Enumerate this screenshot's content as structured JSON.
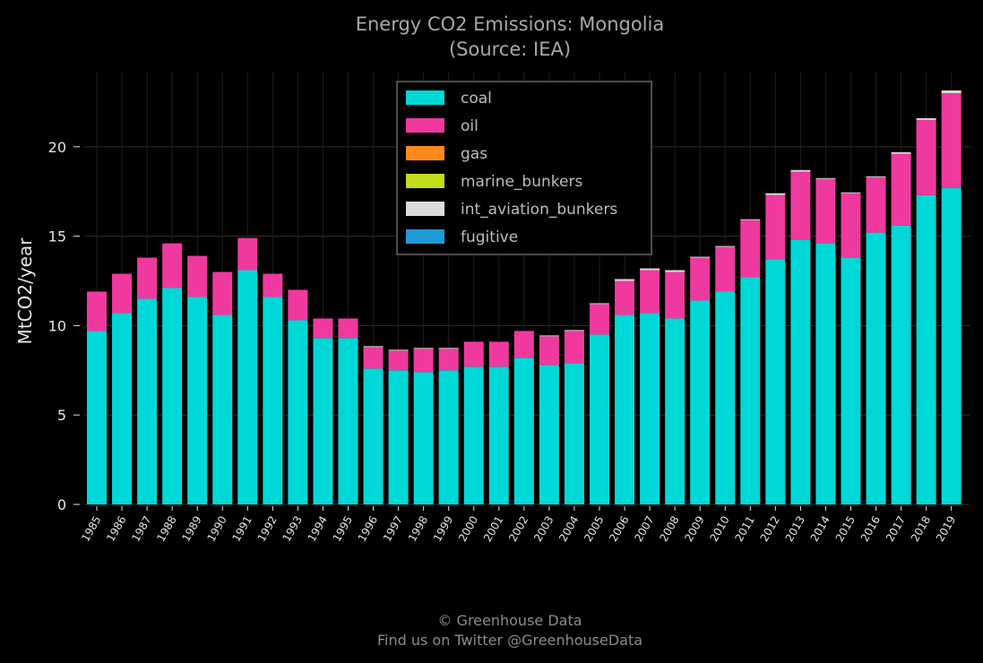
{
  "chart_data": {
    "type": "bar",
    "stacked": true,
    "title": "Energy CO2 Emissions: Mongolia",
    "subtitle": "(Source: IEA)",
    "xlabel": "",
    "ylabel": "MtCO2/year",
    "ylim": [
      0,
      24.2
    ],
    "yticks": [
      "0",
      "5",
      "10",
      "15",
      "20"
    ],
    "grid": true,
    "legend_position": "top-center",
    "categories": [
      "1985",
      "1986",
      "1987",
      "1988",
      "1989",
      "1990",
      "1991",
      "1992",
      "1993",
      "1994",
      "1995",
      "1996",
      "1997",
      "1998",
      "1999",
      "2000",
      "2001",
      "2002",
      "2003",
      "2004",
      "2005",
      "2006",
      "2007",
      "2008",
      "2009",
      "2010",
      "2011",
      "2012",
      "2013",
      "2014",
      "2015",
      "2016",
      "2017",
      "2018",
      "2019"
    ],
    "series": [
      {
        "name": "coal",
        "color": "#00d8d8",
        "values": [
          9.7,
          10.7,
          11.5,
          12.1,
          11.6,
          10.6,
          13.1,
          11.6,
          10.3,
          9.3,
          9.3,
          7.6,
          7.5,
          7.4,
          7.5,
          7.7,
          7.7,
          8.2,
          7.8,
          7.9,
          9.5,
          10.6,
          10.7,
          10.4,
          11.4,
          11.9,
          12.7,
          13.7,
          14.8,
          14.6,
          13.8,
          15.2,
          15.6,
          17.3,
          17.7
        ]
      },
      {
        "name": "oil",
        "color": "#f0399f",
        "values": [
          2.2,
          2.2,
          2.3,
          2.5,
          2.3,
          2.4,
          1.8,
          1.3,
          1.7,
          1.1,
          1.1,
          1.2,
          1.1,
          1.3,
          1.2,
          1.4,
          1.4,
          1.5,
          1.6,
          1.8,
          1.7,
          1.9,
          2.4,
          2.6,
          2.4,
          2.5,
          3.2,
          3.6,
          3.8,
          3.6,
          3.6,
          3.1,
          4.0,
          4.2,
          5.3
        ]
      },
      {
        "name": "gas",
        "color": "#ff8a1a",
        "values": [
          0,
          0,
          0,
          0,
          0,
          0,
          0,
          0,
          0,
          0,
          0,
          0,
          0,
          0,
          0,
          0,
          0,
          0,
          0,
          0,
          0,
          0,
          0,
          0,
          0,
          0,
          0,
          0,
          0,
          0,
          0,
          0,
          0,
          0,
          0
        ]
      },
      {
        "name": "marine_bunkers",
        "color": "#c3dc1c",
        "values": [
          0,
          0,
          0,
          0,
          0,
          0,
          0,
          0,
          0,
          0,
          0,
          0,
          0,
          0,
          0,
          0,
          0,
          0,
          0,
          0,
          0,
          0,
          0,
          0,
          0,
          0,
          0,
          0,
          0,
          0,
          0,
          0,
          0,
          0,
          0
        ]
      },
      {
        "name": "int_aviation_bunkers",
        "color": "#dcdcdc",
        "values": [
          0,
          0,
          0,
          0,
          0,
          0,
          0,
          0,
          0,
          0,
          0,
          0.05,
          0.05,
          0.05,
          0.05,
          0,
          0,
          0,
          0.05,
          0.05,
          0.05,
          0.1,
          0.1,
          0.1,
          0.05,
          0.05,
          0.05,
          0.1,
          0.1,
          0.05,
          0.05,
          0.05,
          0.1,
          0.1,
          0.15
        ]
      },
      {
        "name": "fugitive",
        "color": "#1f9ad6",
        "values": [
          0,
          0,
          0,
          0,
          0,
          0,
          0,
          0,
          0,
          0,
          0,
          0,
          0,
          0,
          0,
          0,
          0,
          0,
          0,
          0,
          0,
          0,
          0,
          0,
          0,
          0,
          0,
          0,
          0,
          0,
          0,
          0,
          0,
          0,
          0
        ]
      }
    ]
  },
  "footer": {
    "line1": "© Greenhouse Data",
    "line2": "Find us on Twitter @GreenhouseData"
  }
}
